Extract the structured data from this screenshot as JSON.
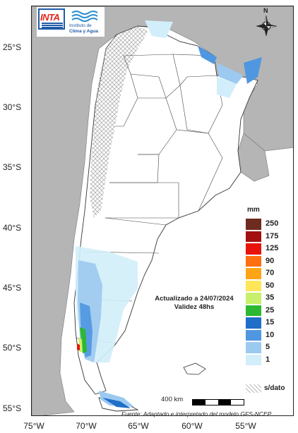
{
  "logo": {
    "inta": "INTA",
    "institute_line1": "Instituto de",
    "institute_line2": "Clima y Agua"
  },
  "compass": {
    "north": "N"
  },
  "axes": {
    "latitudes": [
      "25°S",
      "30°S",
      "35°S",
      "40°S",
      "45°S",
      "50°S",
      "55°S"
    ],
    "longitudes": [
      "75°W",
      "70°W",
      "65°W",
      "60°W",
      "55°W"
    ]
  },
  "annotation": {
    "line1": "Actualizado a 24/07/2024",
    "line2": "Validez 48hs"
  },
  "legend": {
    "unit": "mm",
    "items": [
      {
        "label": "250",
        "color": "#6e2b1f"
      },
      {
        "label": "175",
        "color": "#a31010"
      },
      {
        "label": "125",
        "color": "#e8140c"
      },
      {
        "label": "90",
        "color": "#ff6e10"
      },
      {
        "label": "70",
        "color": "#ffa416"
      },
      {
        "label": "50",
        "color": "#ffe55a"
      },
      {
        "label": "35",
        "color": "#c8f06a"
      },
      {
        "label": "25",
        "color": "#2db832"
      },
      {
        "label": "15",
        "color": "#1f6ec8"
      },
      {
        "label": "10",
        "color": "#4f97e0"
      },
      {
        "label": "5",
        "color": "#9cc9f0"
      },
      {
        "label": "1",
        "color": "#d2eefa"
      }
    ],
    "nodata_label": "s/dato"
  },
  "scale": {
    "label": "400 km"
  },
  "source": "Fuente: Adaptado e interpretado del modelo GFS-NCEP",
  "colors": {
    "neighbor_land": "#b5b5b5",
    "argentina_land": "#ffffff",
    "border": "#333333"
  }
}
